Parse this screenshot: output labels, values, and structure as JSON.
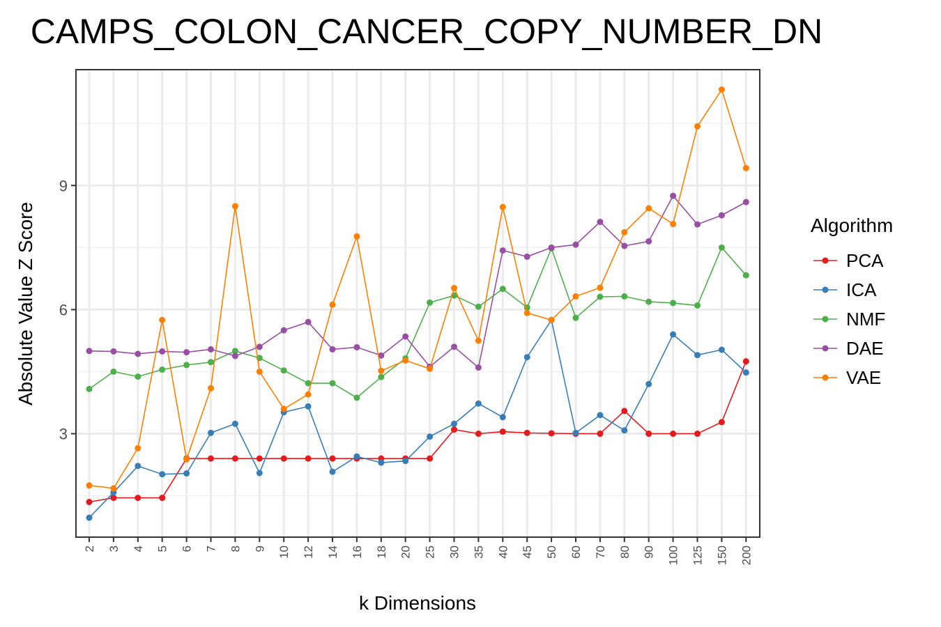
{
  "chart_data": {
    "type": "line",
    "title": "CAMPS_COLON_CANCER_COPY_NUMBER_DN",
    "xlabel": "k Dimensions",
    "ylabel": "Absolute Value Z Score",
    "categories": [
      "2",
      "3",
      "4",
      "5",
      "6",
      "7",
      "8",
      "9",
      "10",
      "12",
      "14",
      "16",
      "18",
      "20",
      "25",
      "30",
      "35",
      "40",
      "45",
      "50",
      "60",
      "70",
      "80",
      "90",
      "100",
      "125",
      "150",
      "200"
    ],
    "yticks": [
      3,
      6,
      9
    ],
    "ylim": [
      0.5,
      11.8
    ],
    "grid": true,
    "legend": {
      "title": "Algorithm",
      "position": "right"
    },
    "series": [
      {
        "name": "PCA",
        "color": "#e41a1c",
        "values": [
          1.35,
          1.45,
          1.45,
          1.45,
          2.4,
          2.4,
          2.4,
          2.4,
          2.4,
          2.4,
          2.4,
          2.4,
          2.4,
          2.4,
          2.4,
          3.1,
          3.0,
          3.05,
          3.02,
          3.01,
          3.0,
          3.0,
          3.55,
          3.0,
          3.0,
          3.0,
          3.28,
          4.75
        ]
      },
      {
        "name": "ICA",
        "color": "#377eb8",
        "values": [
          0.97,
          1.58,
          2.22,
          2.02,
          2.04,
          3.02,
          3.24,
          2.05,
          3.52,
          3.66,
          2.08,
          2.45,
          2.3,
          2.34,
          2.93,
          3.24,
          3.73,
          3.4,
          4.85,
          5.75,
          3.02,
          3.45,
          3.08,
          4.2,
          5.4,
          4.9,
          5.03,
          4.48
        ]
      },
      {
        "name": "NMF",
        "color": "#4daf4a",
        "values": [
          4.08,
          4.5,
          4.38,
          4.55,
          4.66,
          4.73,
          5.0,
          4.83,
          4.53,
          4.22,
          4.22,
          3.87,
          4.37,
          4.82,
          6.17,
          6.34,
          6.07,
          6.5,
          6.05,
          7.48,
          5.8,
          6.31,
          6.32,
          6.19,
          6.16,
          6.1,
          7.5,
          6.83
        ]
      },
      {
        "name": "DAE",
        "color": "#984ea3",
        "values": [
          5.0,
          4.99,
          4.93,
          4.99,
          4.97,
          5.04,
          4.88,
          5.1,
          5.5,
          5.7,
          5.04,
          5.09,
          4.89,
          5.35,
          4.62,
          5.1,
          4.6,
          7.43,
          7.28,
          7.5,
          7.57,
          8.12,
          7.54,
          7.65,
          8.75,
          8.06,
          8.28,
          8.6
        ]
      },
      {
        "name": "VAE",
        "color": "#ff7f00",
        "values": [
          1.75,
          1.68,
          2.65,
          5.75,
          2.38,
          4.1,
          8.5,
          4.5,
          3.6,
          3.95,
          6.12,
          7.77,
          4.52,
          4.77,
          4.57,
          6.52,
          5.25,
          8.48,
          5.92,
          5.75,
          6.32,
          6.53,
          7.87,
          8.45,
          8.07,
          10.43,
          11.32,
          9.42
        ]
      }
    ]
  }
}
